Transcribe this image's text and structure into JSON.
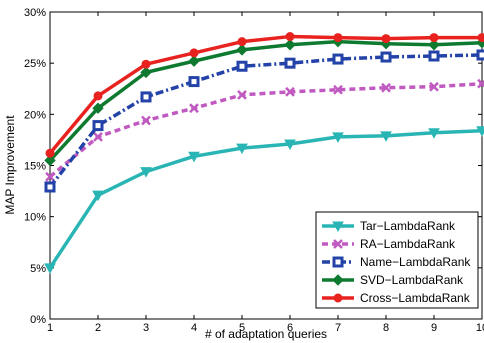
{
  "chart_data": {
    "type": "line",
    "title": "",
    "xlabel": "# of adaptation queries",
    "ylabel": "MAP Improvement",
    "x": [
      1,
      2,
      3,
      4,
      5,
      6,
      7,
      8,
      9,
      10
    ],
    "xlim": [
      1,
      10
    ],
    "ylim": [
      0,
      30
    ],
    "x_ticks": [
      "1",
      "2",
      "3",
      "4",
      "5",
      "6",
      "7",
      "8",
      "9",
      "10"
    ],
    "y_ticks": [
      "0%",
      "5%",
      "10%",
      "15%",
      "20%",
      "25%",
      "30%"
    ],
    "grid": false,
    "legend_position": "bottom-right",
    "series": [
      {
        "name": "Tar−LambdaRank",
        "color": "#2ab5b5",
        "marker": "triangle-down",
        "dash": "solid",
        "values": [
          5.0,
          12.1,
          14.4,
          15.9,
          16.7,
          17.1,
          17.8,
          17.9,
          18.2,
          18.4
        ]
      },
      {
        "name": "RA−LambdaRank",
        "color": "#c05ac0",
        "marker": "x",
        "dash": "dashed",
        "values": [
          13.9,
          17.8,
          19.4,
          20.6,
          21.9,
          22.2,
          22.4,
          22.6,
          22.7,
          23.0
        ]
      },
      {
        "name": "Name−LambdaRank",
        "color": "#2343a8",
        "marker": "square",
        "dash": "dashdot",
        "values": [
          12.9,
          18.9,
          21.7,
          23.2,
          24.7,
          25.0,
          25.4,
          25.6,
          25.7,
          25.8
        ]
      },
      {
        "name": "SVD−LambdaRank",
        "color": "#0e7a30",
        "marker": "diamond",
        "dash": "solid",
        "values": [
          15.5,
          20.6,
          24.1,
          25.2,
          26.3,
          26.8,
          27.1,
          26.9,
          26.8,
          27.0
        ]
      },
      {
        "name": "Cross−LambdaRank",
        "color": "#e8231f",
        "marker": "circle",
        "dash": "solid",
        "values": [
          16.2,
          21.8,
          24.9,
          26.0,
          27.1,
          27.6,
          27.5,
          27.4,
          27.5,
          27.5
        ]
      }
    ]
  }
}
